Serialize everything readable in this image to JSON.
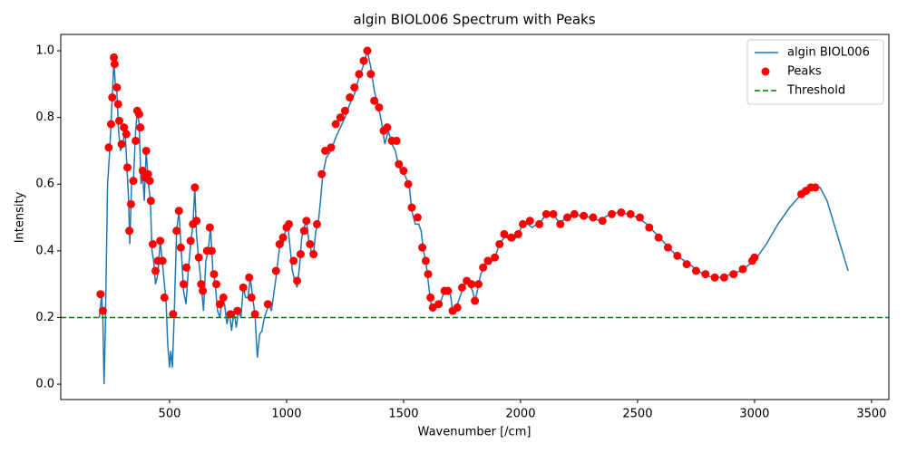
{
  "chart_data": {
    "type": "line",
    "title": "algin BIOL006 Spectrum with Peaks",
    "xlabel": "Wavenumber [/cm]",
    "ylabel": "Intensity",
    "xlim": [
      35,
      3574
    ],
    "ylim": [
      -0.046,
      1.049
    ],
    "xticks": [
      500,
      1000,
      1500,
      2000,
      2500,
      3000,
      3500
    ],
    "yticks": [
      {
        "value": 0,
        "label": "0.0"
      },
      {
        "value": 0.2,
        "label": "0.2"
      },
      {
        "value": 0.4,
        "label": "0.4"
      },
      {
        "value": 0.6,
        "label": "0.6"
      },
      {
        "value": 0.8,
        "label": "0.8"
      },
      {
        "value": 1,
        "label": "1.0"
      }
    ],
    "legend": "upper right",
    "series": [
      {
        "name": "algin BIOL006",
        "type": "line",
        "color": "#1f77b4",
        "x": [
          200,
          210,
          215,
          220,
          225,
          235,
          245,
          255,
          262,
          268,
          275,
          282,
          290,
          300,
          310,
          318,
          325,
          330,
          338,
          345,
          355,
          362,
          370,
          378,
          385,
          392,
          400,
          410,
          418,
          425,
          432,
          440,
          450,
          460,
          470,
          478,
          485,
          492,
          500,
          505,
          512,
          520,
          530,
          540,
          550,
          560,
          570,
          580,
          590,
          600,
          608,
          615,
          625,
          635,
          645,
          655,
          665,
          675,
          685,
          695,
          705,
          715,
          725,
          735,
          745,
          755,
          765,
          775,
          785,
          795,
          805,
          815,
          825,
          835,
          845,
          855,
          865,
          875,
          885,
          895,
          905,
          915,
          925,
          935,
          945,
          955,
          965,
          975,
          985,
          995,
          1005,
          1015,
          1025,
          1035,
          1045,
          1055,
          1065,
          1075,
          1085,
          1095,
          1105,
          1115,
          1125,
          1135,
          1145,
          1155,
          1170,
          1190,
          1210,
          1230,
          1250,
          1270,
          1290,
          1310,
          1330,
          1345,
          1360,
          1375,
          1390,
          1405,
          1420,
          1435,
          1450,
          1465,
          1480,
          1495,
          1510,
          1525,
          1535,
          1550,
          1565,
          1575,
          1585,
          1595,
          1605,
          1615,
          1625,
          1640,
          1655,
          1670,
          1685,
          1700,
          1710,
          1720,
          1735,
          1750,
          1765,
          1780,
          1795,
          1805,
          1815,
          1830,
          1850,
          1870,
          1890,
          1910,
          1930,
          1950,
          1970,
          1990,
          2010,
          2030,
          2050,
          2070,
          2090,
          2110,
          2130,
          2150,
          2170,
          2190,
          2220,
          2260,
          2300,
          2340,
          2380,
          2420,
          2460,
          2500,
          2540,
          2580,
          2620,
          2660,
          2700,
          2740,
          2780,
          2820,
          2860,
          2900,
          2940,
          2980,
          3000,
          3050,
          3100,
          3150,
          3200,
          3250,
          3280,
          3310,
          3340,
          3370,
          3400
        ],
        "values": [
          0.2,
          0.27,
          0.19,
          0.0,
          0.15,
          0.6,
          0.71,
          0.86,
          0.97,
          0.9,
          0.88,
          0.76,
          0.7,
          0.72,
          0.76,
          0.65,
          0.55,
          0.42,
          0.61,
          0.6,
          0.76,
          0.82,
          0.78,
          0.6,
          0.63,
          0.55,
          0.7,
          0.6,
          0.55,
          0.4,
          0.37,
          0.3,
          0.33,
          0.43,
          0.36,
          0.3,
          0.25,
          0.12,
          0.05,
          0.1,
          0.05,
          0.21,
          0.46,
          0.52,
          0.4,
          0.28,
          0.24,
          0.34,
          0.42,
          0.48,
          0.59,
          0.45,
          0.37,
          0.3,
          0.22,
          0.37,
          0.4,
          0.47,
          0.34,
          0.3,
          0.22,
          0.2,
          0.26,
          0.24,
          0.18,
          0.22,
          0.16,
          0.22,
          0.17,
          0.22,
          0.2,
          0.29,
          0.26,
          0.26,
          0.32,
          0.26,
          0.21,
          0.08,
          0.15,
          0.16,
          0.2,
          0.22,
          0.24,
          0.22,
          0.27,
          0.32,
          0.38,
          0.44,
          0.42,
          0.46,
          0.48,
          0.41,
          0.34,
          0.31,
          0.29,
          0.35,
          0.44,
          0.47,
          0.49,
          0.43,
          0.4,
          0.39,
          0.46,
          0.48,
          0.55,
          0.63,
          0.68,
          0.7,
          0.74,
          0.77,
          0.8,
          0.84,
          0.87,
          0.92,
          0.96,
          1.0,
          0.95,
          0.88,
          0.84,
          0.79,
          0.72,
          0.76,
          0.72,
          0.7,
          0.65,
          0.64,
          0.62,
          0.59,
          0.52,
          0.48,
          0.48,
          0.46,
          0.4,
          0.37,
          0.31,
          0.25,
          0.22,
          0.23,
          0.24,
          0.27,
          0.28,
          0.27,
          0.22,
          0.22,
          0.25,
          0.28,
          0.31,
          0.3,
          0.28,
          0.25,
          0.28,
          0.33,
          0.36,
          0.36,
          0.38,
          0.42,
          0.44,
          0.44,
          0.43,
          0.45,
          0.48,
          0.48,
          0.47,
          0.48,
          0.49,
          0.51,
          0.51,
          0.5,
          0.48,
          0.5,
          0.51,
          0.505,
          0.5,
          0.49,
          0.51,
          0.515,
          0.51,
          0.5,
          0.48,
          0.45,
          0.42,
          0.39,
          0.37,
          0.35,
          0.33,
          0.32,
          0.32,
          0.33,
          0.34,
          0.36,
          0.37,
          0.42,
          0.48,
          0.53,
          0.57,
          0.59,
          0.59,
          0.55,
          0.48,
          0.41,
          0.34
        ]
      },
      {
        "name": "Peaks",
        "type": "scatter",
        "color": "#ff0000",
        "x": [
          205,
          215,
          240,
          250,
          255,
          262,
          265,
          275,
          280,
          285,
          295,
          305,
          315,
          320,
          328,
          335,
          345,
          355,
          362,
          370,
          375,
          385,
          395,
          400,
          408,
          415,
          420,
          428,
          440,
          450,
          460,
          470,
          478,
          515,
          530,
          540,
          548,
          560,
          572,
          590,
          600,
          608,
          615,
          625,
          635,
          642,
          660,
          672,
          680,
          690,
          700,
          715,
          730,
          760,
          790,
          815,
          840,
          850,
          865,
          920,
          955,
          970,
          985,
          1000,
          1010,
          1030,
          1045,
          1060,
          1075,
          1085,
          1100,
          1115,
          1130,
          1150,
          1165,
          1190,
          1210,
          1230,
          1250,
          1270,
          1290,
          1310,
          1330,
          1345,
          1360,
          1375,
          1395,
          1415,
          1430,
          1450,
          1470,
          1480,
          1500,
          1520,
          1535,
          1560,
          1580,
          1595,
          1605,
          1615,
          1625,
          1650,
          1675,
          1690,
          1710,
          1730,
          1750,
          1770,
          1790,
          1805,
          1820,
          1840,
          1860,
          1890,
          1910,
          1930,
          1960,
          1990,
          2010,
          2040,
          2080,
          2110,
          2140,
          2170,
          2200,
          2230,
          2270,
          2310,
          2350,
          2390,
          2430,
          2470,
          2510,
          2550,
          2590,
          2630,
          2670,
          2710,
          2750,
          2790,
          2830,
          2870,
          2910,
          2950,
          2990,
          3000,
          3200,
          3220,
          3240,
          3260
        ],
        "values": [
          0.27,
          0.22,
          0.71,
          0.78,
          0.86,
          0.98,
          0.96,
          0.89,
          0.84,
          0.79,
          0.72,
          0.77,
          0.75,
          0.65,
          0.46,
          0.54,
          0.61,
          0.73,
          0.82,
          0.81,
          0.77,
          0.64,
          0.62,
          0.7,
          0.63,
          0.61,
          0.55,
          0.42,
          0.34,
          0.37,
          0.43,
          0.37,
          0.26,
          0.21,
          0.46,
          0.52,
          0.41,
          0.3,
          0.35,
          0.43,
          0.48,
          0.59,
          0.49,
          0.38,
          0.3,
          0.28,
          0.4,
          0.47,
          0.4,
          0.33,
          0.3,
          0.24,
          0.26,
          0.21,
          0.22,
          0.29,
          0.32,
          0.26,
          0.21,
          0.24,
          0.34,
          0.42,
          0.44,
          0.47,
          0.48,
          0.37,
          0.31,
          0.39,
          0.46,
          0.49,
          0.42,
          0.39,
          0.48,
          0.63,
          0.7,
          0.71,
          0.78,
          0.8,
          0.82,
          0.86,
          0.89,
          0.93,
          0.97,
          1.0,
          0.93,
          0.85,
          0.83,
          0.76,
          0.77,
          0.73,
          0.73,
          0.66,
          0.64,
          0.6,
          0.53,
          0.5,
          0.41,
          0.37,
          0.33,
          0.26,
          0.23,
          0.24,
          0.28,
          0.28,
          0.22,
          0.23,
          0.29,
          0.31,
          0.3,
          0.25,
          0.3,
          0.35,
          0.37,
          0.38,
          0.42,
          0.45,
          0.44,
          0.45,
          0.48,
          0.49,
          0.48,
          0.51,
          0.51,
          0.48,
          0.5,
          0.51,
          0.505,
          0.5,
          0.49,
          0.51,
          0.515,
          0.51,
          0.5,
          0.47,
          0.44,
          0.41,
          0.385,
          0.36,
          0.34,
          0.33,
          0.32,
          0.32,
          0.33,
          0.345,
          0.37,
          0.38,
          0.57,
          0.58,
          0.59,
          0.59
        ]
      },
      {
        "name": "Threshold",
        "type": "hline",
        "color": "#008000",
        "value": 0.2
      }
    ]
  }
}
